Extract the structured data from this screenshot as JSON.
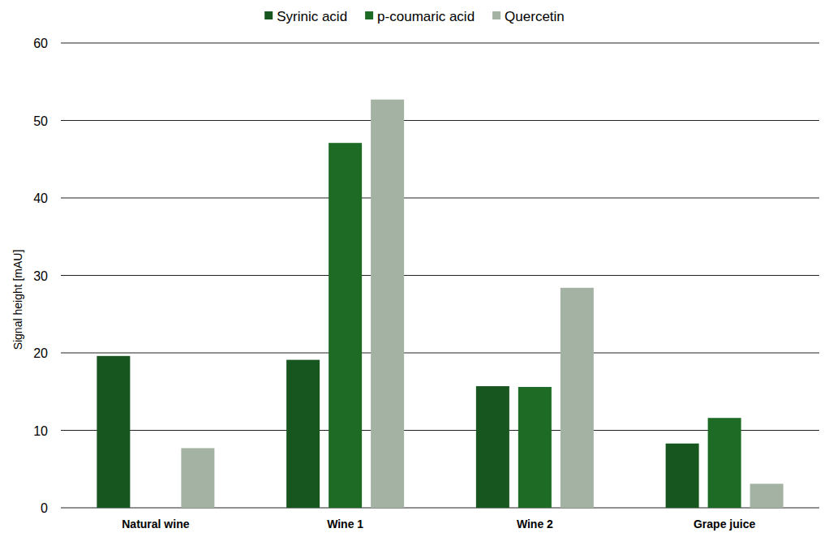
{
  "chart_data": {
    "type": "bar",
    "y_label": "Signal height [mAU]",
    "categories": [
      "Natural wine",
      "Wine 1",
      "Wine 2",
      "Grape juice"
    ],
    "series": [
      {
        "name": "Syrinic acid",
        "color": "#17561f",
        "values": [
          19.6,
          19.1,
          15.7,
          8.3
        ]
      },
      {
        "name": "p-coumaric acid",
        "color": "#1d6b24",
        "values": [
          0,
          47.1,
          15.6,
          11.6
        ]
      },
      {
        "name": "Quercetin",
        "color": "#a3b2a3",
        "values": [
          7.7,
          52.7,
          28.4,
          3.1
        ]
      }
    ],
    "ylim": [
      0,
      60
    ],
    "yticks": [
      0,
      10,
      20,
      30,
      40,
      50,
      60
    ],
    "grid": true,
    "legend": "top"
  }
}
